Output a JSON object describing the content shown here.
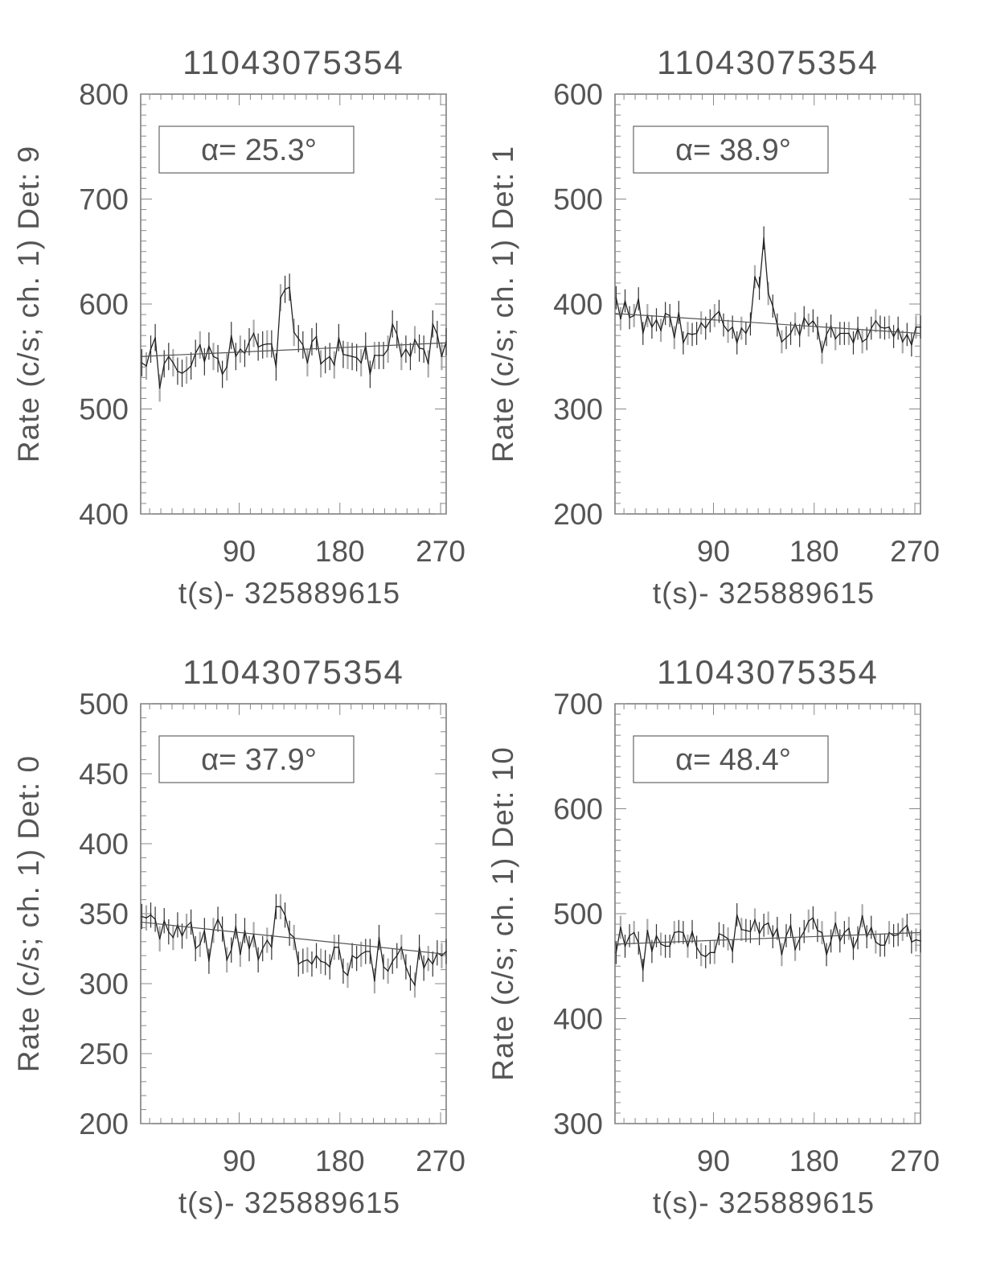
{
  "chart_data": [
    {
      "type": "line",
      "title": "11043075354",
      "xlabel": "t(s)- 325889615",
      "ylabel": "Rate (c/s; ch. 1) Det: 9",
      "annotation": "α= 25.3°",
      "xlim": [
        2,
        275
      ],
      "ylim": [
        400,
        800
      ],
      "xticks": [
        "90",
        "180",
        "270"
      ],
      "yticks": [
        "400",
        "500",
        "600",
        "700",
        "800"
      ],
      "grid": false,
      "error": 13,
      "x": [
        3,
        7,
        11,
        15,
        19,
        23,
        27,
        31,
        35,
        39,
        43,
        47,
        51,
        55,
        59,
        63,
        67,
        71,
        75,
        79,
        83,
        87,
        91,
        95,
        99,
        103,
        107,
        111,
        115,
        119,
        123,
        127,
        131,
        135,
        139,
        143,
        147,
        151,
        155,
        159,
        163,
        167,
        171,
        175,
        179,
        183,
        187,
        191,
        195,
        199,
        203,
        207,
        211,
        215,
        219,
        223,
        227,
        231,
        235,
        239,
        243,
        247,
        251,
        255,
        259,
        263,
        267,
        271,
        275
      ],
      "y": [
        544,
        541,
        557,
        568,
        520,
        543,
        550,
        544,
        536,
        534,
        537,
        541,
        553,
        561,
        545,
        560,
        550,
        548,
        533,
        540,
        570,
        550,
        557,
        553,
        564,
        572,
        559,
        561,
        562,
        562,
        540,
        606,
        614,
        616,
        573,
        567,
        561,
        544,
        564,
        569,
        543,
        547,
        550,
        542,
        568,
        552,
        551,
        550,
        549,
        544,
        560,
        533,
        551,
        551,
        551,
        557,
        581,
        571,
        550,
        557,
        550,
        566,
        558,
        557,
        543,
        581,
        571,
        550,
        564
      ],
      "fit": [
        550,
        563
      ]
    },
    {
      "type": "line",
      "title": "11043075354",
      "xlabel": "t(s)- 325889615",
      "ylabel": "Rate (c/s; ch. 1) Det: 1",
      "annotation": "α= 38.9°",
      "xlim": [
        2,
        275
      ],
      "ylim": [
        200,
        600
      ],
      "xticks": [
        "90",
        "180",
        "270"
      ],
      "yticks": [
        "200",
        "300",
        "400",
        "500",
        "600"
      ],
      "grid": false,
      "error": 11,
      "x": [
        3,
        7,
        11,
        15,
        19,
        23,
        27,
        31,
        35,
        39,
        43,
        47,
        51,
        55,
        59,
        63,
        67,
        71,
        75,
        79,
        83,
        87,
        91,
        95,
        99,
        103,
        107,
        111,
        115,
        119,
        123,
        127,
        131,
        135,
        139,
        143,
        147,
        151,
        155,
        159,
        163,
        167,
        171,
        175,
        179,
        183,
        187,
        191,
        195,
        199,
        203,
        207,
        211,
        215,
        219,
        223,
        227,
        231,
        235,
        239,
        243,
        247,
        251,
        255,
        259,
        263,
        267,
        271,
        275
      ],
      "y": [
        406,
        386,
        403,
        387,
        389,
        405,
        372,
        389,
        378,
        385,
        375,
        391,
        389,
        368,
        392,
        363,
        372,
        371,
        372,
        382,
        377,
        384,
        389,
        393,
        380,
        374,
        378,
        363,
        377,
        372,
        381,
        426,
        415,
        463,
        410,
        398,
        380,
        364,
        368,
        372,
        381,
        370,
        387,
        380,
        384,
        377,
        354,
        371,
        379,
        367,
        372,
        372,
        372,
        363,
        377,
        364,
        367,
        377,
        384,
        378,
        377,
        378,
        369,
        377,
        364,
        371,
        361,
        378,
        378
      ],
      "fit": [
        391,
        372
      ]
    },
    {
      "type": "line",
      "title": "11043075354",
      "xlabel": "t(s)- 325889615",
      "ylabel": "Rate (c/s; ch. 1) Det: 0",
      "annotation": "α= 37.9°",
      "xlim": [
        2,
        275
      ],
      "ylim": [
        200,
        500
      ],
      "xticks": [
        "90",
        "180",
        "270"
      ],
      "yticks": [
        "200",
        "250",
        "300",
        "350",
        "400",
        "450",
        "500"
      ],
      "grid": false,
      "error": 9,
      "x": [
        3,
        7,
        11,
        15,
        19,
        23,
        27,
        31,
        35,
        39,
        43,
        47,
        51,
        55,
        59,
        63,
        67,
        71,
        75,
        79,
        83,
        87,
        91,
        95,
        99,
        103,
        107,
        111,
        115,
        119,
        123,
        127,
        131,
        135,
        139,
        143,
        147,
        151,
        155,
        159,
        163,
        167,
        171,
        175,
        179,
        183,
        187,
        191,
        195,
        199,
        203,
        207,
        211,
        215,
        219,
        223,
        227,
        231,
        235,
        239,
        243,
        247,
        251,
        255,
        259,
        263,
        267,
        271,
        275
      ],
      "y": [
        348,
        347,
        349,
        346,
        332,
        345,
        337,
        333,
        342,
        334,
        341,
        344,
        325,
        328,
        338,
        316,
        338,
        346,
        339,
        317,
        324,
        341,
        321,
        338,
        325,
        335,
        317,
        325,
        331,
        326,
        355,
        355,
        349,
        336,
        333,
        314,
        316,
        317,
        314,
        320,
        316,
        315,
        312,
        326,
        326,
        309,
        306,
        320,
        318,
        321,
        323,
        323,
        302,
        333,
        312,
        309,
        316,
        320,
        326,
        312,
        304,
        299,
        326,
        311,
        318,
        314,
        322,
        320,
        323
      ],
      "fit": [
        344,
        321
      ]
    },
    {
      "type": "line",
      "title": "11043075354",
      "xlabel": "t(s)- 325889615",
      "ylabel": "Rate (c/s; ch. 1) Det: 10",
      "annotation": "α= 48.4°",
      "xlim": [
        2,
        275
      ],
      "ylim": [
        300,
        700
      ],
      "xticks": [
        "90",
        "180",
        "270"
      ],
      "yticks": [
        "300",
        "400",
        "500",
        "600",
        "700"
      ],
      "grid": false,
      "error": 11,
      "x": [
        3,
        7,
        11,
        15,
        19,
        23,
        27,
        31,
        35,
        39,
        43,
        47,
        51,
        55,
        59,
        63,
        67,
        71,
        75,
        79,
        83,
        87,
        91,
        95,
        99,
        103,
        107,
        111,
        115,
        119,
        123,
        127,
        131,
        135,
        139,
        143,
        147,
        151,
        155,
        159,
        163,
        167,
        171,
        175,
        179,
        183,
        187,
        191,
        195,
        199,
        203,
        207,
        211,
        215,
        219,
        223,
        227,
        231,
        235,
        239,
        243,
        247,
        251,
        255,
        259,
        263,
        267,
        271,
        275
      ],
      "y": [
        463,
        487,
        469,
        479,
        482,
        472,
        446,
        484,
        464,
        479,
        471,
        469,
        469,
        482,
        483,
        482,
        469,
        483,
        468,
        461,
        459,
        463,
        463,
        481,
        479,
        476,
        464,
        499,
        485,
        484,
        483,
        494,
        481,
        489,
        491,
        478,
        486,
        461,
        479,
        489,
        466,
        476,
        483,
        493,
        496,
        484,
        482,
        461,
        474,
        491,
        474,
        482,
        486,
        467,
        477,
        498,
        478,
        487,
        473,
        470,
        470,
        482,
        479,
        480,
        485,
        489,
        473,
        475,
        474
      ],
      "fit": [
        471,
        482
      ]
    }
  ]
}
